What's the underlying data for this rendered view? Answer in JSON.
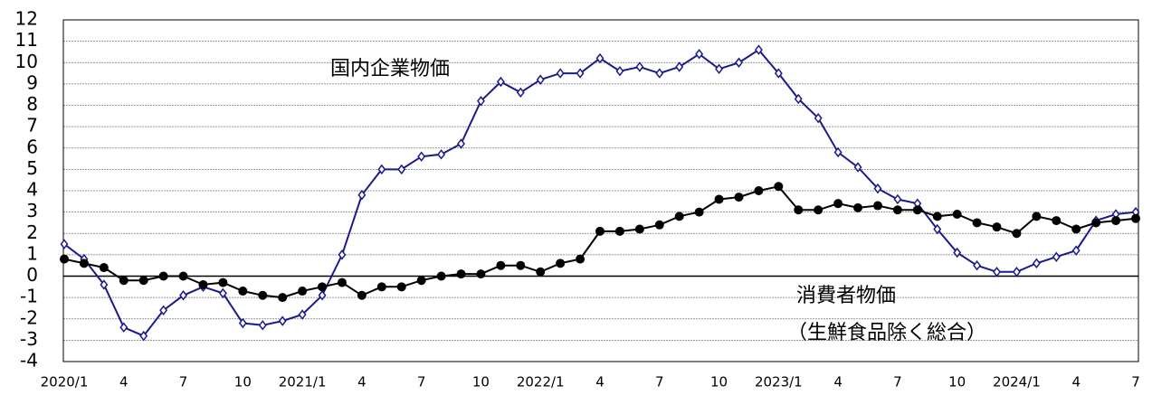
{
  "chart_data": {
    "type": "line",
    "annotations": [
      "国内企業物価",
      "消費者物価",
      "（生鮮食品除く総合）"
    ],
    "categories": [
      "2020/1",
      null,
      null,
      "4",
      null,
      null,
      "7",
      null,
      null,
      "10",
      null,
      null,
      "2021/1",
      null,
      null,
      "4",
      null,
      null,
      "7",
      null,
      null,
      "10",
      null,
      null,
      "2022/1",
      null,
      null,
      "4",
      null,
      null,
      "7",
      null,
      null,
      "10",
      null,
      null,
      "2023/1",
      null,
      null,
      "4",
      null,
      null,
      "7",
      null,
      null,
      "10",
      null,
      null,
      "2024/1",
      null,
      null,
      "4",
      null,
      null,
      "7"
    ],
    "series": [
      {
        "name": "国内企業物価",
        "color": "#1a1a8c",
        "marker": "diamond",
        "values": [
          1.5,
          0.8,
          -0.4,
          -2.4,
          -2.8,
          -1.6,
          -0.9,
          -0.5,
          -0.8,
          -2.2,
          -2.3,
          -2.1,
          -1.8,
          -0.9,
          1.0,
          3.8,
          5.0,
          5.0,
          5.6,
          5.7,
          6.2,
          8.2,
          9.1,
          8.6,
          9.2,
          9.5,
          9.5,
          10.2,
          9.6,
          9.8,
          9.5,
          9.8,
          10.4,
          9.7,
          10.0,
          10.6,
          9.5,
          8.3,
          7.4,
          5.8,
          5.1,
          4.1,
          3.6,
          3.4,
          2.2,
          1.1,
          0.5,
          0.2,
          0.2,
          0.6,
          0.9,
          1.2,
          2.6,
          2.9,
          3.0
        ]
      },
      {
        "name": "消費者物価",
        "color": "#000000",
        "marker": "circle",
        "values": [
          0.8,
          0.6,
          0.4,
          -0.2,
          -0.2,
          0.0,
          0.0,
          -0.4,
          -0.3,
          -0.7,
          -0.9,
          -1.0,
          -0.7,
          -0.5,
          -0.3,
          -0.9,
          -0.5,
          -0.5,
          -0.2,
          0.0,
          0.1,
          0.1,
          0.5,
          0.5,
          0.2,
          0.6,
          0.8,
          2.1,
          2.1,
          2.2,
          2.4,
          2.8,
          3.0,
          3.6,
          3.7,
          4.0,
          4.2,
          3.1,
          3.1,
          3.4,
          3.2,
          3.3,
          3.1,
          3.1,
          2.8,
          2.9,
          2.5,
          2.3,
          2.0,
          2.8,
          2.6,
          2.2,
          2.5,
          2.6,
          2.7
        ]
      }
    ],
    "ylim": [
      -4,
      12
    ],
    "yticks": [
      -4,
      -3,
      -2,
      -1,
      0,
      1,
      2,
      3,
      4,
      5,
      6,
      7,
      8,
      9,
      10,
      11,
      12
    ],
    "grid": true
  }
}
